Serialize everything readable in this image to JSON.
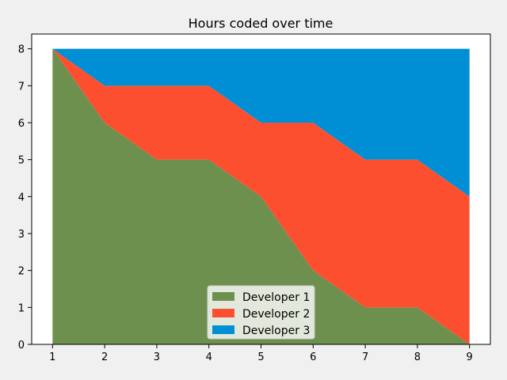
{
  "chart_data": {
    "type": "area",
    "stacked": true,
    "title": "Hours coded over time",
    "xlabel": "",
    "ylabel": "",
    "x": [
      1,
      2,
      3,
      4,
      5,
      6,
      7,
      8,
      9
    ],
    "series": [
      {
        "name": "Developer 1",
        "values": [
          8,
          6,
          5,
          5,
          4,
          2,
          1,
          1,
          0
        ],
        "color": "#6d904f"
      },
      {
        "name": "Developer 2",
        "values": [
          0,
          1,
          2,
          2,
          2,
          4,
          4,
          4,
          4
        ],
        "color": "#fc4f30"
      },
      {
        "name": "Developer 3",
        "values": [
          0,
          1,
          1,
          1,
          2,
          2,
          3,
          3,
          4
        ],
        "color": "#008fd5"
      }
    ],
    "xlim": [
      0.6,
      9.4
    ],
    "ylim": [
      0,
      8.4
    ],
    "xticks": [
      1,
      2,
      3,
      4,
      5,
      6,
      7,
      8,
      9
    ],
    "yticks": [
      0,
      1,
      2,
      3,
      4,
      5,
      6,
      7,
      8
    ],
    "grid": false,
    "legend_position": "lower-center",
    "colors": {
      "figure_background": "#f0f0f0",
      "axes_background": "#ffffff"
    }
  }
}
